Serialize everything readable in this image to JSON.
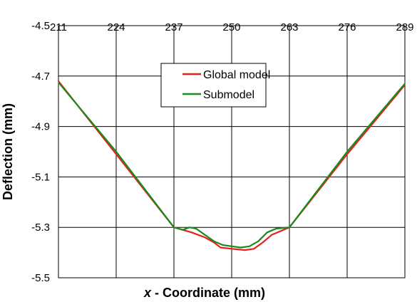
{
  "chart_data": {
    "type": "line",
    "xlabel_var": "x",
    "xlabel_rest": " - Coordinate (mm)",
    "ylabel": "Deflection (mm)",
    "xlim": [
      211,
      289
    ],
    "ylim": [
      -5.5,
      -4.5
    ],
    "x_ticks": [
      "211",
      "224",
      "237",
      "250",
      "263",
      "276",
      "289"
    ],
    "y_ticks": [
      "-4.5",
      "-4.7",
      "-4.9",
      "-5.1",
      "-5.3",
      "-5.5"
    ],
    "x_tick_values": [
      211,
      224,
      237,
      250,
      263,
      276,
      289
    ],
    "y_tick_values": [
      -4.5,
      -4.7,
      -4.9,
      -5.1,
      -5.3,
      -5.5
    ],
    "grid": true,
    "x_axis_position": "top",
    "legend": "upper-center",
    "series": [
      {
        "name": "Global model",
        "color": "#e8201c",
        "points": [
          [
            211,
            -4.72
          ],
          [
            224,
            -5.01
          ],
          [
            237,
            -5.3
          ],
          [
            241,
            -5.32
          ],
          [
            244,
            -5.34
          ],
          [
            246,
            -5.36
          ],
          [
            247.5,
            -5.38
          ],
          [
            250,
            -5.385
          ],
          [
            253,
            -5.39
          ],
          [
            255,
            -5.385
          ],
          [
            257,
            -5.36
          ],
          [
            259,
            -5.33
          ],
          [
            261,
            -5.315
          ],
          [
            263,
            -5.3
          ],
          [
            276,
            -5.01
          ],
          [
            289,
            -4.735
          ]
        ]
      },
      {
        "name": "Submodel",
        "color": "#1a8a1a",
        "points": [
          [
            211,
            -4.725
          ],
          [
            224,
            -5.0
          ],
          [
            237,
            -5.3
          ],
          [
            239,
            -5.31
          ],
          [
            240.5,
            -5.3
          ],
          [
            242,
            -5.305
          ],
          [
            244,
            -5.33
          ],
          [
            246,
            -5.355
          ],
          [
            248,
            -5.37
          ],
          [
            250,
            -5.375
          ],
          [
            252,
            -5.38
          ],
          [
            254,
            -5.375
          ],
          [
            256,
            -5.355
          ],
          [
            258,
            -5.32
          ],
          [
            260,
            -5.305
          ],
          [
            263,
            -5.3
          ],
          [
            276,
            -5.0
          ],
          [
            289,
            -4.73
          ]
        ]
      }
    ]
  }
}
